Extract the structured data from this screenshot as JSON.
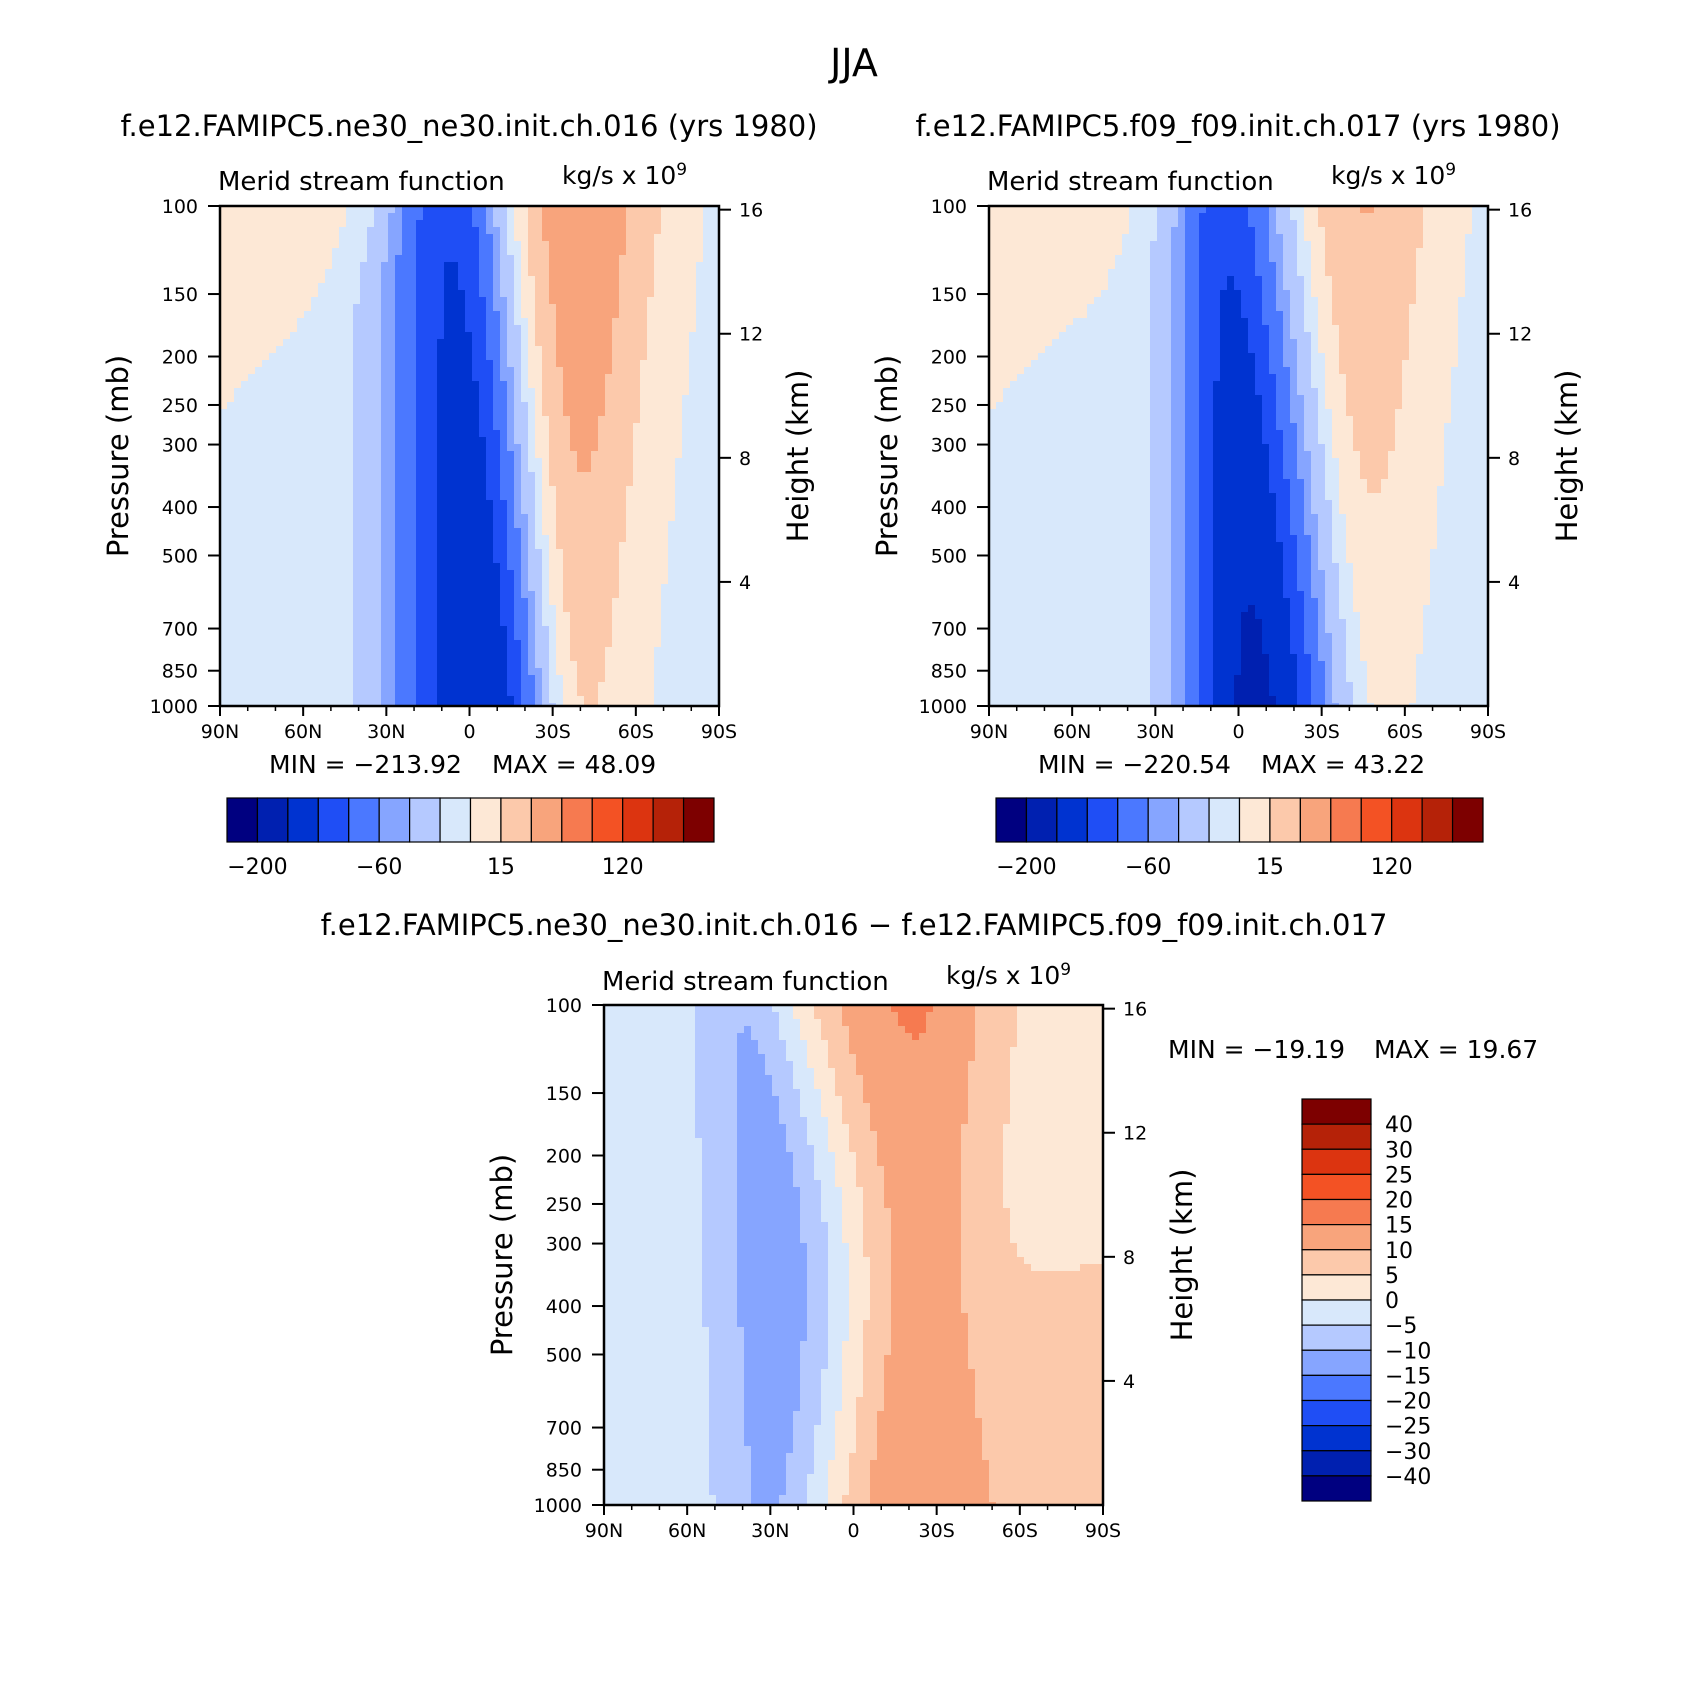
{
  "figure": {
    "season": "JJA",
    "top_titles": [
      "f.e12.FAMIPC5.ne30_ne30.init.ch.016 (yrs 1980)",
      "f.e12.FAMIPC5.f09_f09.init.ch.017 (yrs 1980)"
    ],
    "diff_title": "f.e12.FAMIPC5.ne30_ne30.init.ch.016 − f.e12.FAMIPC5.f09_f09.init.ch.017"
  },
  "chart_data": [
    {
      "type": "heatmap",
      "id": "p1",
      "title": "Merid stream function",
      "units": "kg/s x 10",
      "units_exponent": "9",
      "xlabel": "",
      "ylabel": "Pressure (mb)",
      "right_label": "Height (km)",
      "x_ticks": [
        "90N",
        "60N",
        "30N",
        "0",
        "30S",
        "60S",
        "90S"
      ],
      "x_values": [
        90,
        60,
        30,
        0,
        -30,
        -60,
        -90
      ],
      "xlim": [
        90,
        -90
      ],
      "y_ticks": [
        100,
        150,
        200,
        250,
        300,
        400,
        500,
        700,
        850,
        1000
      ],
      "ylim": [
        1000,
        100
      ],
      "y_scale": "log",
      "right_ticks": [
        16,
        12,
        8,
        4
      ],
      "min_label": "MIN = −213.92",
      "max_label": "MAX = 48.09",
      "min": -213.92,
      "max": 48.09,
      "colorbar": {
        "orientation": "horizontal",
        "labels": [
          "−200",
          "−60",
          "15",
          "120"
        ],
        "colors": [
          "#000080",
          "#0020b0",
          "#0033d0",
          "#1f4ef5",
          "#4b78ff",
          "#86a5ff",
          "#b5c9ff",
          "#d8e8fb",
          "#fde8d6",
          "#fcc9ab",
          "#f8a47c",
          "#f67a50",
          "#f35224",
          "#dc3410",
          "#b52208",
          "#7d0000"
        ]
      },
      "fields": [
        {
          "x": 90,
          "p": 100,
          "v": 3
        },
        {
          "x": 60,
          "p": 500,
          "v": -5
        },
        {
          "x": 30,
          "p": 500,
          "v": 5
        },
        {
          "x": 5,
          "p": 500,
          "v": -210
        },
        {
          "x": -35,
          "p": 400,
          "v": 45
        },
        {
          "x": -70,
          "p": 500,
          "v": -5
        }
      ]
    },
    {
      "type": "heatmap",
      "id": "p2",
      "title": "Merid stream function",
      "units": "kg/s x 10",
      "units_exponent": "9",
      "xlabel": "",
      "ylabel": "Pressure (mb)",
      "right_label": "Height (km)",
      "x_ticks": [
        "90N",
        "60N",
        "30N",
        "0",
        "30S",
        "60S",
        "90S"
      ],
      "x_values": [
        90,
        60,
        30,
        0,
        -30,
        -60,
        -90
      ],
      "xlim": [
        90,
        -90
      ],
      "y_ticks": [
        100,
        150,
        200,
        250,
        300,
        400,
        500,
        700,
        850,
        1000
      ],
      "ylim": [
        1000,
        100
      ],
      "y_scale": "log",
      "right_ticks": [
        16,
        12,
        8,
        4
      ],
      "min_label": "MIN = −220.54",
      "max_label": "MAX = 43.22",
      "min": -220.54,
      "max": 43.22,
      "colorbar": {
        "orientation": "horizontal",
        "labels": [
          "−200",
          "−60",
          "15",
          "120"
        ],
        "colors": [
          "#000080",
          "#0020b0",
          "#0033d0",
          "#1f4ef5",
          "#4b78ff",
          "#86a5ff",
          "#b5c9ff",
          "#d8e8fb",
          "#fde8d6",
          "#fcc9ab",
          "#f8a47c",
          "#f67a50",
          "#f35224",
          "#dc3410",
          "#b52208",
          "#7d0000"
        ]
      },
      "fields": [
        {
          "x": 90,
          "p": 100,
          "v": 3
        },
        {
          "x": 60,
          "p": 500,
          "v": -5
        },
        {
          "x": 30,
          "p": 500,
          "v": 5
        },
        {
          "x": -5,
          "p": 500,
          "v": -220
        },
        {
          "x": -35,
          "p": 400,
          "v": 40
        },
        {
          "x": -70,
          "p": 500,
          "v": -5
        }
      ]
    },
    {
      "type": "heatmap",
      "id": "p3",
      "title": "Merid stream function",
      "units": "kg/s x 10",
      "units_exponent": "9",
      "xlabel": "",
      "ylabel": "Pressure (mb)",
      "right_label": "Height (km)",
      "x_ticks": [
        "90N",
        "60N",
        "30N",
        "0",
        "30S",
        "60S",
        "90S"
      ],
      "x_values": [
        90,
        60,
        30,
        0,
        -30,
        -60,
        -90
      ],
      "xlim": [
        90,
        -90
      ],
      "y_ticks": [
        100,
        150,
        200,
        250,
        300,
        400,
        500,
        700,
        850,
        1000
      ],
      "ylim": [
        1000,
        100
      ],
      "y_scale": "log",
      "right_ticks": [
        16,
        12,
        8,
        4
      ],
      "min_label": "MIN = −19.19",
      "max_label": "MAX = 19.67",
      "min": -19.19,
      "max": 19.67,
      "colorbar": {
        "orientation": "vertical",
        "labels": [
          "40",
          "30",
          "25",
          "20",
          "15",
          "10",
          "5",
          "0",
          "−5",
          "−10",
          "−15",
          "−20",
          "−25",
          "−30",
          "−40"
        ],
        "colors": [
          "#7d0000",
          "#b52208",
          "#dc3410",
          "#f35224",
          "#f67a50",
          "#f8a47c",
          "#fcc9ab",
          "#fde8d6",
          "#d8e8fb",
          "#b5c9ff",
          "#86a5ff",
          "#4b78ff",
          "#1f4ef5",
          "#0033d0",
          "#0020b0",
          "#000080"
        ]
      },
      "fields": [
        {
          "x": 70,
          "p": 400,
          "v": -4
        },
        {
          "x": 10,
          "p": 350,
          "v": -19
        },
        {
          "x": -15,
          "p": 220,
          "v": 17
        },
        {
          "x": -15,
          "p": 450,
          "v": 19
        },
        {
          "x": -60,
          "p": 750,
          "v": 10
        },
        {
          "x": -55,
          "p": 300,
          "v": 3
        }
      ]
    }
  ]
}
